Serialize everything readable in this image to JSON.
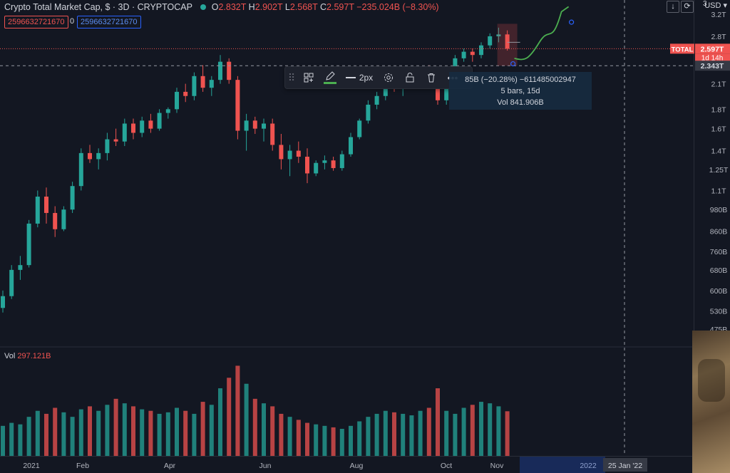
{
  "header": {
    "title": "Crypto Total Market Cap, $ · 3D · CRYPTOCAP",
    "ohlc": [
      {
        "k": "O",
        "v": "2.832T"
      },
      {
        "k": "H",
        "v": "2.902T"
      },
      {
        "k": "L",
        "v": "2.568T"
      },
      {
        "k": "C",
        "v": "2.597T"
      }
    ],
    "change": "−235.024B (−8.30%)",
    "red_box": "2596632721670",
    "zero": "0",
    "blue_box": "2596632721670"
  },
  "top_right": {
    "currency": "USD",
    "count": "3"
  },
  "volume": {
    "label": "Vol",
    "value": "297.121B"
  },
  "toolbar": {
    "width_label": "2px"
  },
  "tooltip": {
    "line1": "85B (−20.28%) −611485002947",
    "line2": "5 bars, 15d",
    "line3": "Vol 841.906B"
  },
  "price_scale": {
    "ticks": [
      "3.2T",
      "2.8T",
      "2.1T",
      "1.8T",
      "1.6T",
      "1.4T",
      "1.25T",
      "1.1T",
      "980B",
      "860B",
      "760B",
      "680B",
      "600B",
      "530B",
      "475B"
    ],
    "total_label": "TOTAL",
    "current_price": "2.597T",
    "countdown": "1d 14h",
    "crosshair_price": "2.343T"
  },
  "time_scale": {
    "labels": [
      "2021",
      "Feb",
      "Apr",
      "Jun",
      "Aug",
      "Oct",
      "Nov",
      "2022"
    ],
    "crosshair_date": "25 Jan '22"
  },
  "colors": {
    "up": "#26a69a",
    "down": "#ef5350",
    "bg": "#131722",
    "line": "#4caf50"
  },
  "chart_data": {
    "type": "candlestick",
    "title": "Crypto Total Market Cap, $",
    "interval": "3D",
    "source": "CRYPTOCAP",
    "y_scale": "log",
    "ylim": [
      475,
      3200
    ],
    "y_units": "B",
    "series": [
      {
        "name": "price",
        "unit": "B",
        "values": [
          [
            540,
            600,
            525,
            580
          ],
          [
            580,
            700,
            570,
            680
          ],
          [
            680,
            740,
            640,
            700
          ],
          [
            700,
            920,
            690,
            900
          ],
          [
            900,
            1100,
            880,
            1060
          ],
          [
            1060,
            1120,
            900,
            960
          ],
          [
            960,
            1000,
            830,
            870
          ],
          [
            870,
            1000,
            860,
            980
          ],
          [
            980,
            1160,
            960,
            1130
          ],
          [
            1130,
            1420,
            1100,
            1380
          ],
          [
            1380,
            1450,
            1300,
            1330
          ],
          [
            1330,
            1420,
            1250,
            1380
          ],
          [
            1380,
            1560,
            1320,
            1500
          ],
          [
            1500,
            1600,
            1440,
            1480
          ],
          [
            1480,
            1700,
            1440,
            1650
          ],
          [
            1650,
            1700,
            1500,
            1560
          ],
          [
            1560,
            1720,
            1520,
            1680
          ],
          [
            1680,
            1750,
            1560,
            1600
          ],
          [
            1600,
            1800,
            1580,
            1760
          ],
          [
            1760,
            1820,
            1700,
            1800
          ],
          [
            1800,
            2050,
            1760,
            2000
          ],
          [
            2000,
            2100,
            1880,
            1950
          ],
          [
            1950,
            2250,
            1900,
            2200
          ],
          [
            2200,
            2350,
            2000,
            2050
          ],
          [
            2050,
            2200,
            1950,
            2150
          ],
          [
            2150,
            2500,
            2100,
            2400
          ],
          [
            2400,
            2450,
            2100,
            2150
          ],
          [
            2150,
            2200,
            1500,
            1580
          ],
          [
            1580,
            1750,
            1400,
            1680
          ],
          [
            1680,
            1720,
            1550,
            1600
          ],
          [
            1600,
            1700,
            1480,
            1650
          ],
          [
            1650,
            1700,
            1400,
            1450
          ],
          [
            1450,
            1550,
            1250,
            1330
          ],
          [
            1330,
            1450,
            1200,
            1400
          ],
          [
            1400,
            1480,
            1300,
            1350
          ],
          [
            1350,
            1420,
            1150,
            1220
          ],
          [
            1220,
            1320,
            1200,
            1300
          ],
          [
            1300,
            1360,
            1250,
            1320
          ],
          [
            1320,
            1350,
            1240,
            1260
          ],
          [
            1260,
            1400,
            1240,
            1370
          ],
          [
            1370,
            1560,
            1350,
            1520
          ],
          [
            1520,
            1700,
            1500,
            1680
          ],
          [
            1680,
            1900,
            1650,
            1850
          ],
          [
            1850,
            2000,
            1800,
            1950
          ],
          [
            1950,
            2150,
            1900,
            2100
          ],
          [
            2100,
            2200,
            2000,
            2050
          ],
          [
            2050,
            2150,
            1950,
            2100
          ],
          [
            2100,
            2250,
            2050,
            2200
          ],
          [
            2200,
            2300,
            2150,
            2250
          ],
          [
            2250,
            2350,
            2100,
            2200
          ],
          [
            2200,
            2250,
            1850,
            1900
          ],
          [
            1900,
            2150,
            1850,
            2100
          ],
          [
            2100,
            2500,
            2050,
            2450
          ],
          [
            2450,
            2600,
            2400,
            2550
          ],
          [
            2550,
            2600,
            2400,
            2500
          ],
          [
            2500,
            2700,
            2450,
            2650
          ],
          [
            2650,
            2850,
            2600,
            2800
          ],
          [
            2800,
            2950,
            2700,
            2832
          ],
          [
            2832,
            2902,
            2568,
            2597
          ]
        ]
      },
      {
        "name": "Vol",
        "unit": "B",
        "values": [
          200,
          220,
          210,
          260,
          300,
          280,
          320,
          290,
          260,
          310,
          330,
          300,
          340,
          380,
          350,
          330,
          310,
          300,
          280,
          290,
          320,
          300,
          280,
          360,
          340,
          450,
          520,
          600,
          480,
          380,
          350,
          330,
          280,
          260,
          240,
          220,
          210,
          200,
          190,
          180,
          200,
          230,
          260,
          280,
          300,
          290,
          280,
          270,
          300,
          320,
          450,
          300,
          280,
          320,
          340,
          360,
          350,
          330,
          297.121
        ]
      }
    ],
    "xlabel": "",
    "ylabel": ""
  }
}
